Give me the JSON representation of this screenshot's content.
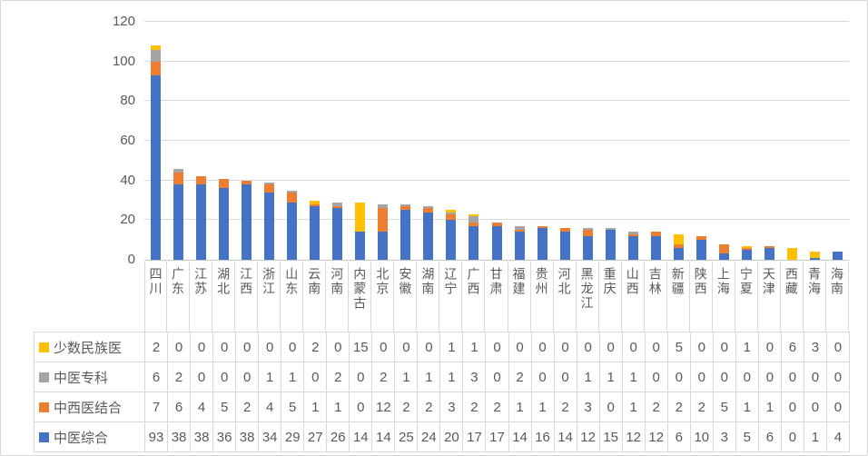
{
  "chart_data": {
    "type": "bar",
    "stacked": true,
    "title": "",
    "xlabel": "",
    "ylabel": "",
    "categories": [
      "四川",
      "广东",
      "江苏",
      "湖北",
      "江西",
      "浙江",
      "山东",
      "云南",
      "河南",
      "内蒙古",
      "北京",
      "安徽",
      "湖南",
      "辽宁",
      "广西",
      "甘肃",
      "福建",
      "贵州",
      "河北",
      "黑龙江",
      "重庆",
      "山西",
      "吉林",
      "新疆",
      "陕西",
      "上海",
      "宁夏",
      "天津",
      "西藏",
      "青海",
      "海南"
    ],
    "series": [
      {
        "name": "少数民族医",
        "color": "#FFC000",
        "values": [
          2,
          0,
          0,
          0,
          0,
          0,
          0,
          2,
          0,
          15,
          0,
          0,
          0,
          1,
          1,
          0,
          0,
          0,
          0,
          0,
          0,
          0,
          0,
          5,
          0,
          0,
          1,
          0,
          6,
          3,
          0
        ]
      },
      {
        "name": "中医专科",
        "color": "#A5A5A5",
        "values": [
          6,
          2,
          0,
          0,
          0,
          1,
          1,
          0,
          2,
          0,
          2,
          1,
          1,
          1,
          3,
          0,
          2,
          0,
          0,
          1,
          1,
          1,
          0,
          0,
          0,
          0,
          0,
          0,
          0,
          0,
          0
        ]
      },
      {
        "name": "中西医结合",
        "color": "#ED7D31",
        "values": [
          7,
          6,
          4,
          5,
          2,
          4,
          5,
          1,
          1,
          0,
          12,
          2,
          2,
          3,
          2,
          2,
          1,
          1,
          2,
          3,
          0,
          1,
          2,
          2,
          2,
          5,
          1,
          1,
          0,
          0,
          0
        ]
      },
      {
        "name": "中医综合",
        "color": "#4472C4",
        "values": [
          93,
          38,
          38,
          36,
          38,
          34,
          29,
          27,
          26,
          14,
          14,
          25,
          24,
          20,
          17,
          17,
          14,
          16,
          14,
          12,
          15,
          12,
          12,
          6,
          10,
          3,
          5,
          6,
          0,
          1,
          4
        ]
      }
    ],
    "stack_order_bottom_to_top": [
      "中医综合",
      "中西医结合",
      "中医专科",
      "少数民族医"
    ],
    "ylim": [
      0,
      120
    ],
    "yticks": [
      0,
      20,
      40,
      60,
      80,
      100,
      120
    ],
    "grid": true,
    "legend_position": "data-table-left",
    "data_table": true
  },
  "colors": {
    "text": "#595959",
    "gridline": "#D9D9D9",
    "table_border": "#D9D9D9",
    "frame_border": "#D7D7D7",
    "background": "#FFFFFF"
  }
}
